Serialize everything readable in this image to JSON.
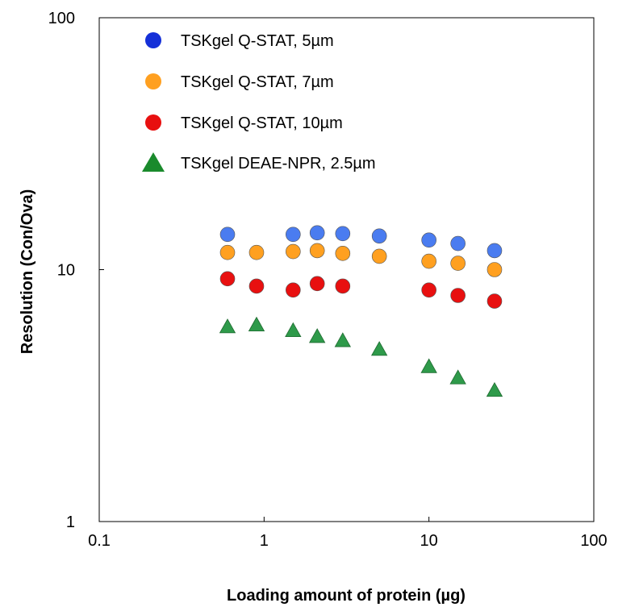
{
  "chart_data": {
    "type": "scatter",
    "title": "",
    "xlabel": "Loading amount of protein (µg)",
    "ylabel": "Resolution (Con/Ova)",
    "xscale": "log",
    "yscale": "log",
    "xlim": [
      0.1,
      100
    ],
    "ylim": [
      1,
      100
    ],
    "xticks": [
      "0.1",
      "1",
      "10",
      "100"
    ],
    "yticks": [
      "1",
      "10",
      "100"
    ],
    "grid": false,
    "legend_position": "top-left",
    "series": [
      {
        "name": "TSKgel Q-STAT, 5µm",
        "marker": "circle",
        "color": "#4a7cf0",
        "legend_color": "#1530d8",
        "x": [
          0.6,
          1.5,
          2.1,
          3.0,
          5.0,
          10,
          15,
          25
        ],
        "y": [
          13.8,
          13.8,
          14.0,
          13.9,
          13.6,
          13.1,
          12.7,
          11.9
        ]
      },
      {
        "name": "TSKgel Q-STAT, 7µm",
        "marker": "circle",
        "color": "#ffa020",
        "legend_color": "#ffa020",
        "x": [
          0.6,
          0.9,
          1.5,
          2.1,
          3.0,
          5.0,
          10,
          15,
          25
        ],
        "y": [
          11.7,
          11.7,
          11.8,
          11.9,
          11.6,
          11.3,
          10.8,
          10.6,
          10.0
        ]
      },
      {
        "name": "TSKgel Q-STAT, 10µm",
        "marker": "circle",
        "color": "#e81010",
        "legend_color": "#e81010",
        "x": [
          0.6,
          0.9,
          1.5,
          2.1,
          3.0,
          10,
          15,
          25
        ],
        "y": [
          9.2,
          8.6,
          8.3,
          8.8,
          8.6,
          8.3,
          7.9,
          7.5
        ]
      },
      {
        "name": "TSKgel DEAE-NPR, 2.5µm",
        "marker": "triangle",
        "color": "#2e9a4a",
        "legend_color": "#1a8a2c",
        "x": [
          0.6,
          0.9,
          1.5,
          2.1,
          3.0,
          5.0,
          10,
          15,
          25
        ],
        "y": [
          5.9,
          6.0,
          5.7,
          5.4,
          5.2,
          4.8,
          4.1,
          3.7,
          3.3
        ]
      }
    ]
  }
}
